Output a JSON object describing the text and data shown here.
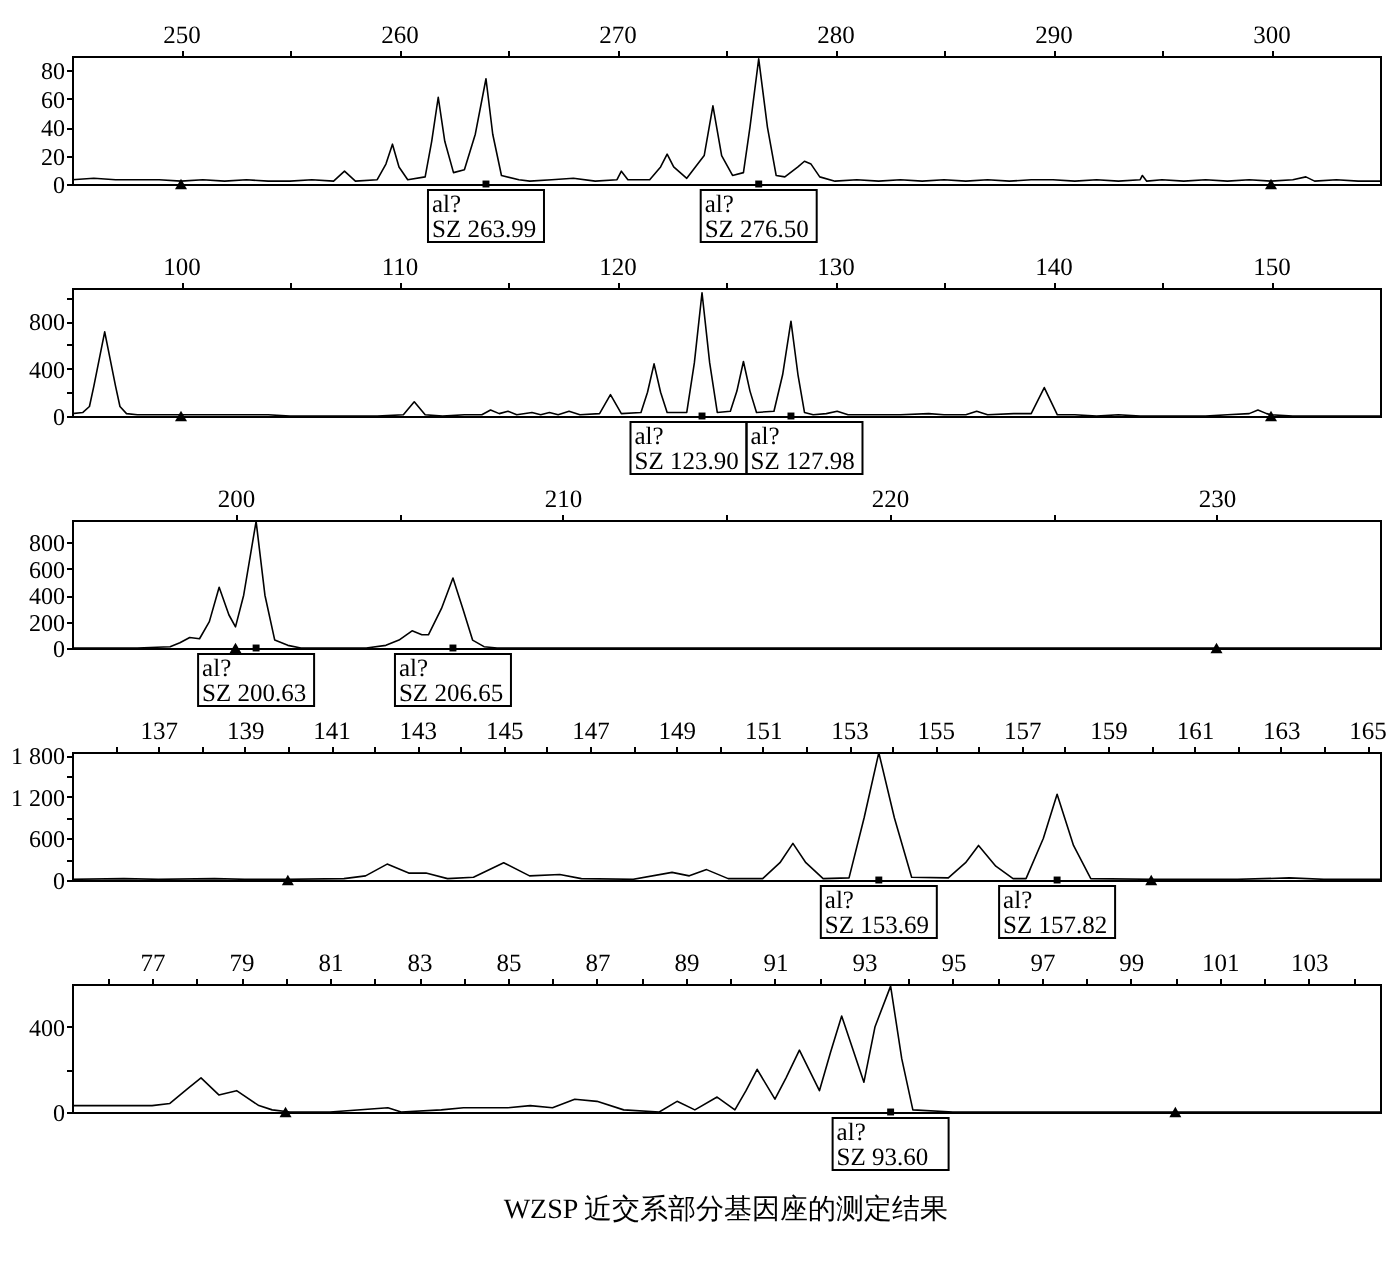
{
  "chart_data": [
    {
      "type": "line",
      "xlim": [
        245,
        305
      ],
      "xticks": [
        250,
        {
          "value": 255,
          "label": null
        },
        260,
        {
          "value": 265,
          "label": null
        },
        270,
        {
          "value": 275,
          "label": null
        },
        280,
        {
          "value": 285,
          "label": null
        },
        290,
        {
          "value": 295,
          "label": null
        },
        300
      ],
      "ylim": [
        0,
        90
      ],
      "yticks": [
        0,
        20,
        40,
        60,
        80
      ],
      "series": [
        {
          "color": "#000000",
          "x": [
            245,
            246,
            247,
            248,
            249,
            250,
            251,
            252,
            253,
            254,
            255,
            256,
            257,
            257.5,
            258,
            259,
            259.4,
            259.7,
            260.0,
            260.4,
            261.2,
            261.5,
            261.8,
            262.1,
            262.5,
            263.0,
            263.5,
            263.99,
            264.3,
            264.7,
            265.5,
            266,
            267,
            268,
            269,
            270,
            270.2,
            270.5,
            271.5,
            272.0,
            272.3,
            272.6,
            273.2,
            274.0,
            274.4,
            274.8,
            275.3,
            275.8,
            276.1,
            276.5,
            276.9,
            277.3,
            277.7,
            278.3,
            278.6,
            278.9,
            279.3,
            280,
            281,
            282,
            283,
            284,
            285,
            286,
            287,
            288,
            289,
            290,
            291,
            292,
            293,
            294,
            294.1,
            294.3,
            295,
            296,
            297,
            298,
            299,
            300,
            301,
            301.6,
            302,
            303,
            304,
            305
          ],
          "values": [
            3,
            4,
            3,
            3,
            3,
            2,
            3,
            2,
            3,
            2,
            2,
            3,
            2,
            9,
            2,
            3,
            14,
            28,
            12,
            3,
            5,
            30,
            61,
            30,
            8,
            10,
            35,
            74,
            35,
            6,
            3,
            2,
            3,
            4,
            2,
            3,
            9,
            3,
            3,
            12,
            21,
            12,
            4,
            20,
            55,
            20,
            6,
            8,
            40,
            88,
            40,
            6,
            5,
            12,
            16,
            14,
            5,
            2,
            3,
            2,
            3,
            2,
            3,
            2,
            3,
            2,
            3,
            3,
            2,
            3,
            2,
            3,
            6,
            2,
            3,
            2,
            3,
            2,
            3,
            2,
            3,
            5,
            2,
            3,
            2,
            2
          ]
        },
        {
          "type": "scatter",
          "marker": "triangle",
          "color": "#000000",
          "x": [
            250,
            300
          ],
          "values": [
            0,
            0
          ]
        },
        {
          "type": "scatter",
          "marker": "square",
          "color": "#000000",
          "x": [
            263.99,
            276.5
          ],
          "values": [
            0,
            0
          ],
          "value_labels": [
            "al?\nSZ 263.99",
            "al?\nSZ 276.50"
          ]
        }
      ]
    },
    {
      "type": "line",
      "xlim": [
        95,
        155
      ],
      "xticks": [
        100,
        {
          "value": 105,
          "label": null
        },
        110,
        {
          "value": 115,
          "label": null
        },
        120,
        {
          "value": 125,
          "label": null
        },
        130,
        {
          "value": 135,
          "label": null
        },
        140,
        {
          "value": 145,
          "label": null
        },
        150
      ],
      "ylim": [
        0,
        1080
      ],
      "yticks": [
        0,
        {
          "value": 200,
          "label": null
        },
        400,
        {
          "value": 600,
          "label": null
        },
        800,
        {
          "value": 1000,
          "label": null
        }
      ],
      "series": [
        {
          "color": "#000000",
          "x": [
            95,
            95.5,
            95.8,
            96.0,
            96.5,
            97.0,
            97.2,
            97.5,
            98,
            99,
            100,
            101,
            102,
            103,
            104,
            105,
            106,
            107,
            108,
            109,
            110.2,
            110.7,
            111.2,
            112,
            113,
            113.8,
            114.2,
            114.6,
            115,
            115.4,
            116.1,
            116.5,
            116.9,
            117.3,
            117.8,
            118.3,
            119.2,
            119.7,
            120.2,
            121.1,
            121.4,
            121.7,
            122.0,
            122.3,
            123.2,
            123.55,
            123.9,
            124.25,
            124.6,
            125.2,
            125.5,
            125.8,
            126.1,
            126.4,
            127.2,
            127.6,
            127.98,
            128.3,
            128.6,
            129,
            129.6,
            130.1,
            130.6,
            131.5,
            132.3,
            133,
            134.3,
            135,
            136,
            136.5,
            137,
            138.2,
            139.0,
            139.6,
            140.2,
            141,
            142,
            143,
            144,
            145,
            146,
            147,
            148,
            149.0,
            149.4,
            149.8,
            150,
            151,
            152,
            153,
            154,
            155
          ],
          "values": [
            20,
            30,
            80,
            250,
            710,
            250,
            80,
            20,
            10,
            10,
            10,
            10,
            10,
            10,
            10,
            0,
            0,
            0,
            0,
            0,
            10,
            120,
            10,
            0,
            10,
            10,
            50,
            20,
            40,
            10,
            30,
            10,
            30,
            10,
            40,
            10,
            20,
            180,
            20,
            30,
            200,
            440,
            200,
            30,
            30,
            450,
            1040,
            450,
            30,
            40,
            210,
            460,
            210,
            30,
            40,
            350,
            800,
            350,
            30,
            10,
            20,
            40,
            10,
            10,
            10,
            10,
            20,
            10,
            10,
            40,
            10,
            20,
            20,
            240,
            10,
            10,
            0,
            10,
            0,
            0,
            0,
            0,
            10,
            20,
            50,
            20,
            10,
            0,
            0,
            0,
            0,
            0
          ]
        },
        {
          "type": "scatter",
          "marker": "triangle",
          "color": "#000000",
          "x": [
            100,
            150
          ],
          "values": [
            0,
            0
          ]
        },
        {
          "type": "scatter",
          "marker": "square",
          "color": "#000000",
          "x": [
            123.9,
            127.98
          ],
          "values": [
            0,
            0
          ],
          "value_labels": [
            "al?\nSZ 123.90",
            "al?\nSZ 127.98"
          ]
        }
      ]
    },
    {
      "type": "line",
      "xlim": [
        195,
        235
      ],
      "xticks": [
        200,
        {
          "value": 205,
          "label": null
        },
        210,
        {
          "value": 215,
          "label": null
        },
        220,
        {
          "value": 225,
          "label": null
        },
        230
      ],
      "ylim": [
        0,
        970
      ],
      "yticks": [
        0,
        200,
        400,
        600,
        800
      ],
      "series": [
        {
          "color": "#000000",
          "x": [
            195,
            196,
            197,
            198,
            198.3,
            198.6,
            198.9,
            199.2,
            199.5,
            199.8,
            200.0,
            200.25,
            200.63,
            200.9,
            201.2,
            201.6,
            202,
            203,
            204,
            204.6,
            205.0,
            205.4,
            205.7,
            205.9,
            206.3,
            206.65,
            206.95,
            207.25,
            207.6,
            208,
            210,
            215,
            220,
            225,
            230,
            235
          ],
          "values": [
            0,
            0,
            0,
            10,
            40,
            80,
            70,
            200,
            460,
            250,
            160,
            400,
            960,
            400,
            60,
            20,
            0,
            0,
            0,
            20,
            60,
            130,
            100,
            100,
            300,
            530,
            300,
            60,
            10,
            0,
            0,
            0,
            0,
            0,
            0,
            0
          ]
        },
        {
          "type": "scatter",
          "marker": "triangle",
          "color": "#000000",
          "x": [
            200,
            230
          ],
          "values": [
            0,
            0
          ]
        },
        {
          "type": "scatter",
          "marker": "square",
          "color": "#000000",
          "x": [
            200.63,
            206.65
          ],
          "values": [
            0,
            0
          ],
          "value_labels": [
            "al?\nSZ 200.63",
            "al?\nSZ 206.65"
          ]
        }
      ]
    },
    {
      "type": "line",
      "xlim": [
        135,
        165.3
      ],
      "xticks": [
        {
          "value": 136,
          "label": null
        },
        137,
        {
          "value": 138,
          "label": null
        },
        139,
        {
          "value": 140,
          "label": null
        },
        141,
        {
          "value": 142,
          "label": null
        },
        143,
        {
          "value": 144,
          "label": null
        },
        145,
        {
          "value": 146,
          "label": null
        },
        147,
        {
          "value": 148,
          "label": null
        },
        149,
        {
          "value": 150,
          "label": null
        },
        151,
        {
          "value": 152,
          "label": null
        },
        153,
        {
          "value": 154,
          "label": null
        },
        155,
        {
          "value": 156,
          "label": null
        },
        157,
        {
          "value": 158,
          "label": null
        },
        159,
        {
          "value": 160,
          "label": null
        },
        161,
        {
          "value": 162,
          "label": null
        },
        163,
        {
          "value": 164,
          "label": null
        },
        165
      ],
      "ylim": [
        0,
        1850
      ],
      "yticks": [
        0,
        {
          "value": 300,
          "label": null
        },
        600,
        {
          "value": 900,
          "label": null
        },
        {
          "value": 1200,
          "label": "1 200"
        },
        {
          "value": 1500,
          "label": null
        },
        {
          "value": 1800,
          "label": "1 800"
        }
      ],
      "series": [
        {
          "color": "#000000",
          "x": [
            135,
            136.2,
            137,
            138.3,
            139,
            140,
            141.3,
            141.8,
            142.3,
            142.8,
            143.2,
            143.7,
            144.3,
            145.0,
            145.6,
            146.3,
            146.8,
            148.0,
            148.9,
            149.3,
            149.7,
            150.2,
            151.0,
            151.4,
            151.7,
            152.0,
            152.4,
            153.0,
            153.35,
            153.69,
            154.05,
            154.45,
            155.3,
            155.7,
            156.0,
            156.4,
            156.8,
            157.1,
            157.5,
            157.82,
            158.2,
            158.6,
            160,
            161,
            162,
            163.2,
            164,
            165.3
          ],
          "values": [
            10,
            20,
            10,
            20,
            10,
            10,
            20,
            60,
            230,
            100,
            100,
            20,
            40,
            250,
            60,
            80,
            20,
            10,
            110,
            60,
            150,
            20,
            20,
            250,
            530,
            250,
            20,
            30,
            900,
            1840,
            900,
            40,
            30,
            250,
            500,
            200,
            20,
            20,
            600,
            1240,
            500,
            20,
            10,
            10,
            10,
            30,
            10,
            10
          ]
        },
        {
          "type": "scatter",
          "marker": "triangle",
          "color": "#000000",
          "x": [
            140,
            160
          ],
          "values": [
            0,
            0
          ]
        },
        {
          "type": "scatter",
          "marker": "square",
          "color": "#000000",
          "x": [
            153.69,
            157.82
          ],
          "values": [
            0,
            0
          ],
          "value_labels": [
            "al?\nSZ 153.69",
            "al?\nSZ 157.82"
          ]
        }
      ]
    },
    {
      "type": "line",
      "xlim": [
        75.2,
        104.6
      ],
      "xticks": [
        {
          "value": 76,
          "label": null
        },
        77,
        {
          "value": 78,
          "label": null
        },
        79,
        {
          "value": 80,
          "label": null
        },
        81,
        {
          "value": 82,
          "label": null
        },
        83,
        {
          "value": 84,
          "label": null
        },
        85,
        {
          "value": 86,
          "label": null
        },
        87,
        {
          "value": 88,
          "label": null
        },
        89,
        {
          "value": 90,
          "label": null
        },
        91,
        {
          "value": 92,
          "label": null
        },
        93,
        {
          "value": 94,
          "label": null
        },
        95,
        {
          "value": 96,
          "label": null
        },
        97,
        {
          "value": 98,
          "label": null
        },
        99,
        {
          "value": 100,
          "label": null
        },
        101,
        {
          "value": 102,
          "label": null
        },
        103,
        {
          "value": 104,
          "label": null
        }
      ],
      "ylim": [
        0,
        600
      ],
      "yticks": [
        0,
        {
          "value": 200,
          "label": null
        },
        400
      ],
      "series": [
        {
          "color": "#000000",
          "x": [
            75.2,
            76,
            77,
            77.4,
            77.8,
            78.1,
            78.5,
            78.9,
            79.4,
            79.7,
            80.1,
            81,
            82.3,
            82.6,
            83.5,
            84,
            85,
            85.5,
            86,
            86.5,
            87,
            87.6,
            88.4,
            88.8,
            89.2,
            89.7,
            90.1,
            90.35,
            90.6,
            91.0,
            91.25,
            91.55,
            92.0,
            92.25,
            92.5,
            93.0,
            93.25,
            93.6,
            93.85,
            94.1,
            95,
            96,
            97,
            98,
            99,
            100,
            101,
            102,
            103,
            104.6
          ],
          "values": [
            30,
            30,
            30,
            40,
            110,
            160,
            80,
            100,
            30,
            10,
            0,
            0,
            20,
            0,
            10,
            20,
            20,
            30,
            20,
            60,
            50,
            10,
            0,
            50,
            10,
            70,
            10,
            100,
            200,
            60,
            160,
            290,
            100,
            280,
            450,
            140,
            400,
            590,
            250,
            10,
            0,
            0,
            0,
            0,
            0,
            0,
            0,
            0,
            0,
            0
          ]
        },
        {
          "type": "scatter",
          "marker": "triangle",
          "color": "#000000",
          "x": [
            80,
            100
          ],
          "values": [
            0,
            0
          ]
        },
        {
          "type": "scatter",
          "marker": "square",
          "color": "#000000",
          "x": [
            93.6
          ],
          "values": [
            0
          ],
          "value_labels": [
            "al?\nSZ 93.60"
          ]
        }
      ],
      "annotations": [
        "WZSP 近交系部分基因座的测定结果"
      ]
    }
  ]
}
